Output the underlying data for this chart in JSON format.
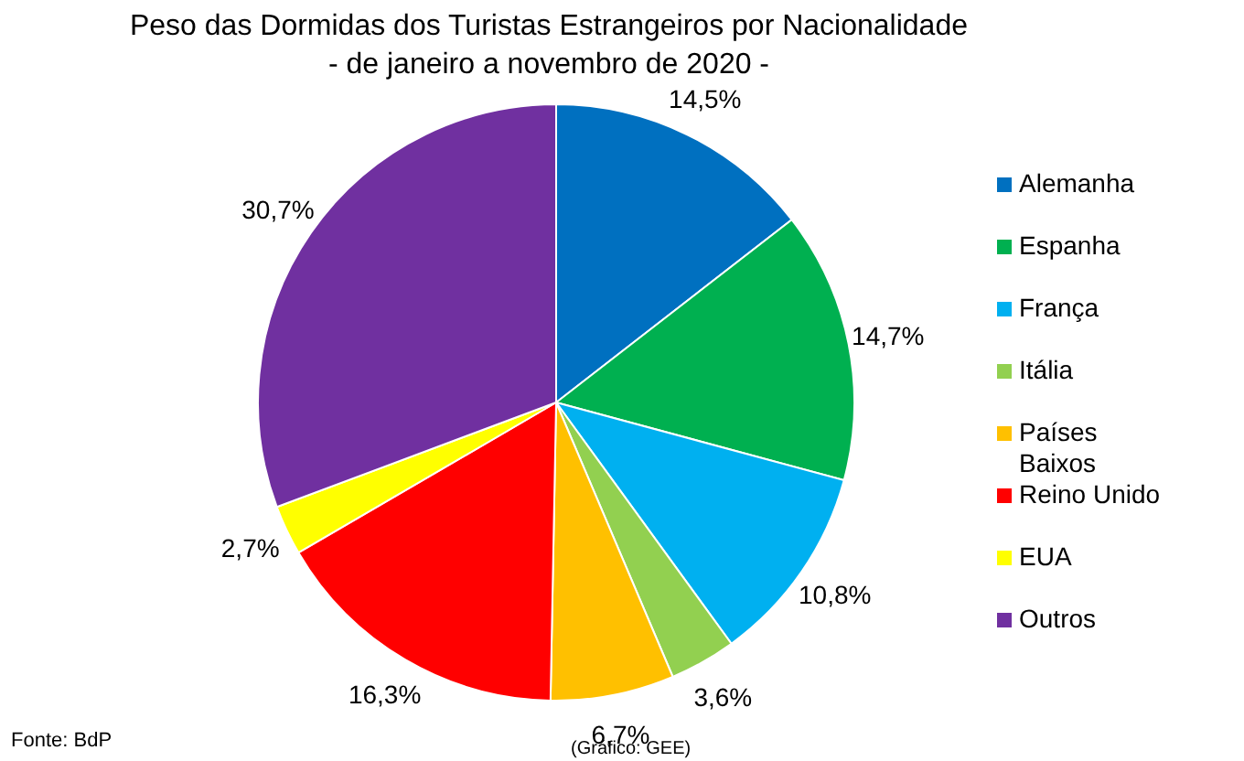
{
  "chart_data": {
    "type": "pie",
    "title": "Peso das Dormidas dos Turistas Estrangeiros por Nacionalidade",
    "subtitle": "- de janeiro a novembro de 2020 -",
    "categories": [
      "Alemanha",
      "Espanha",
      "França",
      "Itália",
      "Países Baixos",
      "Reino Unido",
      "EUA",
      "Outros"
    ],
    "values": [
      14.5,
      14.7,
      10.8,
      3.6,
      6.7,
      16.3,
      2.7,
      30.7
    ],
    "value_labels": [
      "14,5%",
      "14,7%",
      "10,8%",
      "3,6%",
      "6,7%",
      "16,3%",
      "2,7%",
      "30,7%"
    ],
    "colors": [
      "#0070c0",
      "#00b050",
      "#00b0f0",
      "#92d050",
      "#ffc000",
      "#ff0000",
      "#ffff00",
      "#7030a0"
    ],
    "legend": "right",
    "annotations": [
      "Fonte: BdP",
      "(Gráfico: GEE)"
    ]
  }
}
